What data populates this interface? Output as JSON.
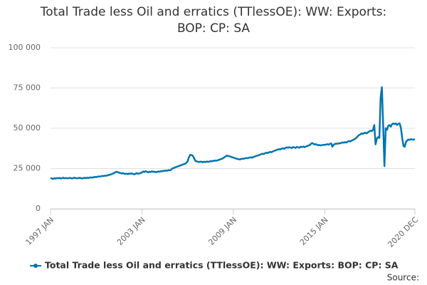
{
  "chart_data": {
    "type": "line",
    "title": "Total Trade less Oil and erratics (TTlessOE): WW: Exports: BOP: CP: SA",
    "source": "Source:",
    "categories": [
      "1997 JAN",
      null,
      null,
      null,
      null,
      null,
      null,
      null,
      null,
      null,
      null,
      null,
      null,
      null,
      null,
      null,
      null,
      null,
      null,
      null,
      null,
      null,
      null,
      null,
      null,
      null,
      null,
      null,
      null,
      null,
      null,
      null,
      null,
      null,
      null,
      null,
      null,
      null,
      null,
      null,
      null,
      null,
      null,
      null,
      null,
      null,
      null,
      null,
      null,
      null,
      null,
      null,
      null,
      null,
      null,
      null,
      null,
      null,
      null,
      null,
      null,
      null,
      null,
      null,
      null,
      null,
      null,
      null,
      null,
      null,
      null,
      null,
      "2003 JAN",
      null,
      null,
      null,
      null,
      null,
      null,
      null,
      null,
      null,
      null,
      null,
      null,
      null,
      null,
      null,
      null,
      null,
      null,
      null,
      null,
      null,
      null,
      null,
      null,
      null,
      null,
      null,
      null,
      null,
      null,
      null,
      null,
      null,
      null,
      null,
      null,
      null,
      null,
      null,
      null,
      null,
      null,
      null,
      null,
      null,
      null,
      null,
      null,
      null,
      null,
      null,
      null,
      null,
      null,
      null,
      null,
      null,
      null,
      null,
      null,
      null,
      null,
      null,
      null,
      null,
      null,
      null,
      null,
      null,
      null,
      null,
      "2009 JAN",
      null,
      null,
      null,
      null,
      null,
      null,
      null,
      null,
      null,
      null,
      null,
      null,
      null,
      null,
      null,
      null,
      null,
      null,
      null,
      null,
      null,
      null,
      null,
      null,
      null,
      null,
      null,
      null,
      null,
      null,
      null,
      null,
      null,
      null,
      null,
      null,
      null,
      null,
      null,
      null,
      null,
      null,
      null,
      null,
      null,
      null,
      null,
      null,
      null,
      null,
      null,
      null,
      null,
      null,
      null,
      null,
      null,
      null,
      null,
      null,
      null,
      null,
      null,
      null,
      null,
      null,
      null,
      null,
      null,
      null,
      null,
      "2015 JAN",
      null,
      null,
      null,
      null,
      null,
      null,
      null,
      null,
      null,
      null,
      null,
      null,
      null,
      null,
      null,
      null,
      null,
      null,
      null,
      null,
      null,
      null,
      null,
      null,
      null,
      null,
      null,
      null,
      null,
      null,
      null,
      null,
      null,
      null,
      null,
      null,
      null,
      null,
      null,
      null,
      null,
      null,
      null,
      null,
      null,
      null,
      null,
      null,
      null,
      null,
      null,
      null,
      null,
      null,
      null,
      null,
      null,
      null,
      null,
      null,
      null,
      null,
      null,
      null,
      null,
      null,
      null,
      null,
      null,
      null,
      "2020 DEC"
    ],
    "series": [
      {
        "name": "Total Trade less Oil and erratics (TTlessOE): WW: Exports: BOP: CP: SA",
        "color": "#0075b0",
        "values": [
          19200,
          18800,
          18500,
          19000,
          18700,
          19100,
          18900,
          19200,
          18800,
          19000,
          19300,
          18900,
          19100,
          19000,
          18900,
          19200,
          19000,
          18800,
          19100,
          19300,
          19000,
          18900,
          19100,
          19200,
          19000,
          18800,
          19100,
          19200,
          19000,
          19300,
          19100,
          19400,
          19500,
          19300,
          19600,
          19800,
          19700,
          19900,
          20100,
          20000,
          20200,
          20400,
          20300,
          20600,
          20500,
          20800,
          21000,
          21200,
          21500,
          21800,
          22200,
          22600,
          23000,
          22700,
          22400,
          22200,
          21900,
          22100,
          21800,
          21600,
          21800,
          21500,
          21900,
          21700,
          22000,
          21600,
          21400,
          21800,
          22100,
          21700,
          21900,
          22200,
          22500,
          23200,
          22800,
          23400,
          22900,
          22600,
          23100,
          22800,
          23300,
          22900,
          23000,
          22700,
          22900,
          23200,
          23000,
          23400,
          23300,
          23600,
          23500,
          23800,
          23600,
          24000,
          23900,
          24200,
          25000,
          25300,
          25600,
          26000,
          26200,
          26500,
          26800,
          27100,
          27400,
          27700,
          28000,
          28500,
          29500,
          32000,
          33500,
          33300,
          33000,
          31500,
          29800,
          29500,
          29200,
          29000,
          29300,
          29100,
          28900,
          29200,
          29000,
          29400,
          29100,
          29300,
          29600,
          29400,
          29800,
          29700,
          30000,
          29900,
          30200,
          30500,
          30800,
          31000,
          31500,
          32000,
          32600,
          33000,
          32800,
          32600,
          32300,
          32000,
          31800,
          31500,
          31200,
          31000,
          30800,
          30600,
          30900,
          31100,
          31000,
          31300,
          31500,
          31400,
          31600,
          31800,
          32000,
          31700,
          32200,
          32500,
          32800,
          33000,
          33300,
          33600,
          33900,
          34200,
          34000,
          34500,
          34800,
          34600,
          35000,
          35300,
          35100,
          35600,
          35900,
          36200,
          36500,
          36800,
          37000,
          36800,
          37300,
          37600,
          37200,
          37800,
          38100,
          37900,
          38200,
          38000,
          37700,
          38300,
          38100,
          37800,
          38400,
          38200,
          37900,
          38500,
          38300,
          38700,
          38200,
          38600,
          38900,
          39200,
          39500,
          40200,
          40800,
          40400,
          39900,
          40100,
          39700,
          39400,
          39600,
          39300,
          39500,
          39800,
          39600,
          39900,
          40100,
          39800,
          40300,
          40600,
          38500,
          39800,
          40200,
          40500,
          40300,
          40700,
          40600,
          40900,
          41200,
          41000,
          41400,
          41100,
          41700,
          42000,
          41800,
          42300,
          42600,
          43000,
          43500,
          44200,
          45000,
          45800,
          46200,
          46800,
          46500,
          47000,
          47300,
          46800,
          47500,
          48000,
          48500,
          48200,
          49000,
          52000,
          40000,
          43500,
          44500,
          44000,
          69000,
          75500,
          52000,
          26500,
          50000,
          49000,
          51500,
          52000,
          51000,
          52500,
          53000,
          52500,
          53000,
          52000,
          52800,
          53000,
          50000,
          44000,
          39000,
          38500,
          41500,
          42500,
          43000,
          42800,
          43200,
          43000,
          42900,
          43300
        ]
      }
    ],
    "ylim": [
      0,
      100000
    ],
    "yticks": [
      0,
      {
        "value": 25000,
        "label": "25 000"
      },
      {
        "value": 50000,
        "label": "50 000"
      },
      {
        "value": 75000,
        "label": "75 000"
      },
      {
        "value": 100000,
        "label": "100 000"
      }
    ],
    "grid": true
  }
}
